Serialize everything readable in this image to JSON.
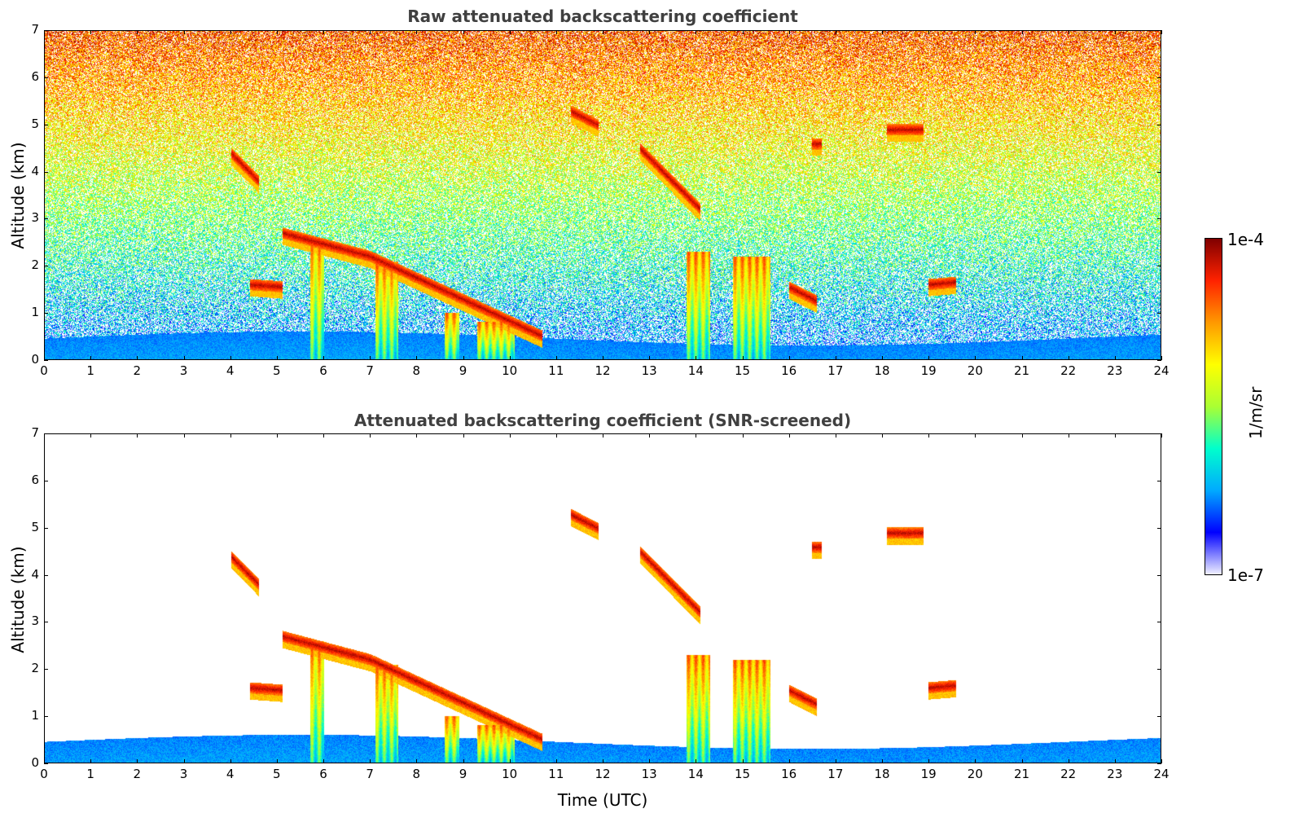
{
  "chart_data": [
    {
      "type": "heatmap",
      "title": "Raw attenuated backscattering coefficient",
      "xlabel": "",
      "ylabel": "Altitude (km)",
      "xlim": [
        0,
        24
      ],
      "ylim": [
        0,
        7
      ],
      "x_ticks": [
        "0",
        "1",
        "2",
        "3",
        "4",
        "5",
        "6",
        "7",
        "8",
        "9",
        "10",
        "11",
        "12",
        "13",
        "14",
        "15",
        "16",
        "17",
        "18",
        "19",
        "20",
        "21",
        "22",
        "23",
        "24"
      ],
      "y_ticks": [
        "0",
        "1",
        "2",
        "3",
        "4",
        "5",
        "6",
        "7"
      ],
      "noise_screened": false,
      "layers": [
        {
          "t": [
            4.0,
            4.6
          ],
          "z": [
            4.4,
            3.8
          ]
        },
        {
          "t": [
            5.1,
            7.0
          ],
          "z": [
            2.7,
            2.2
          ]
        },
        {
          "t": [
            7.0,
            10.7
          ],
          "z": [
            2.2,
            0.5
          ]
        },
        {
          "t": [
            4.4,
            5.1
          ],
          "z": [
            1.6,
            1.55
          ]
        },
        {
          "t": [
            11.3,
            11.9
          ],
          "z": [
            5.3,
            5.0
          ]
        },
        {
          "t": [
            12.8,
            14.1
          ],
          "z": [
            4.5,
            3.2
          ]
        },
        {
          "t": [
            16.0,
            16.6
          ],
          "z": [
            1.55,
            1.25
          ]
        },
        {
          "t": [
            16.5,
            16.7
          ],
          "z": [
            4.6,
            4.6
          ]
        },
        {
          "t": [
            18.1,
            18.9
          ],
          "z": [
            4.9,
            4.9
          ]
        },
        {
          "t": [
            19.0,
            19.6
          ],
          "z": [
            1.6,
            1.65
          ]
        }
      ],
      "precip": [
        {
          "t": [
            5.7,
            6.0
          ],
          "top": 2.6
        },
        {
          "t": [
            7.1,
            7.6
          ],
          "top": 2.1
        },
        {
          "t": [
            8.6,
            8.9
          ],
          "top": 1.0
        },
        {
          "t": [
            9.3,
            10.1
          ],
          "top": 0.8
        },
        {
          "t": [
            13.8,
            14.3
          ],
          "top": 2.3
        },
        {
          "t": [
            14.8,
            15.6
          ],
          "top": 2.2
        }
      ]
    },
    {
      "type": "heatmap",
      "title": "Attenuated backscattering coefficient (SNR-screened)",
      "xlabel": "Time (UTC)",
      "ylabel": "Altitude (km)",
      "xlim": [
        0,
        24
      ],
      "ylim": [
        0,
        7
      ],
      "x_ticks": [
        "0",
        "1",
        "2",
        "3",
        "4",
        "5",
        "6",
        "7",
        "8",
        "9",
        "10",
        "11",
        "12",
        "13",
        "14",
        "15",
        "16",
        "17",
        "18",
        "19",
        "20",
        "21",
        "22",
        "23",
        "24"
      ],
      "y_ticks": [
        "0",
        "1",
        "2",
        "3",
        "4",
        "5",
        "6",
        "7"
      ],
      "noise_screened": true
    }
  ],
  "colorbar": {
    "label": "1/m/sr",
    "max_label": "1e-4",
    "min_label": "1e-7",
    "scale": "log",
    "range": [
      1e-07,
      0.0001
    ],
    "colormap": [
      "#f0f0ff",
      "#0000ff",
      "#00aaff",
      "#00ffcc",
      "#aaff33",
      "#ffff00",
      "#ff9900",
      "#ff2200",
      "#800000"
    ]
  }
}
